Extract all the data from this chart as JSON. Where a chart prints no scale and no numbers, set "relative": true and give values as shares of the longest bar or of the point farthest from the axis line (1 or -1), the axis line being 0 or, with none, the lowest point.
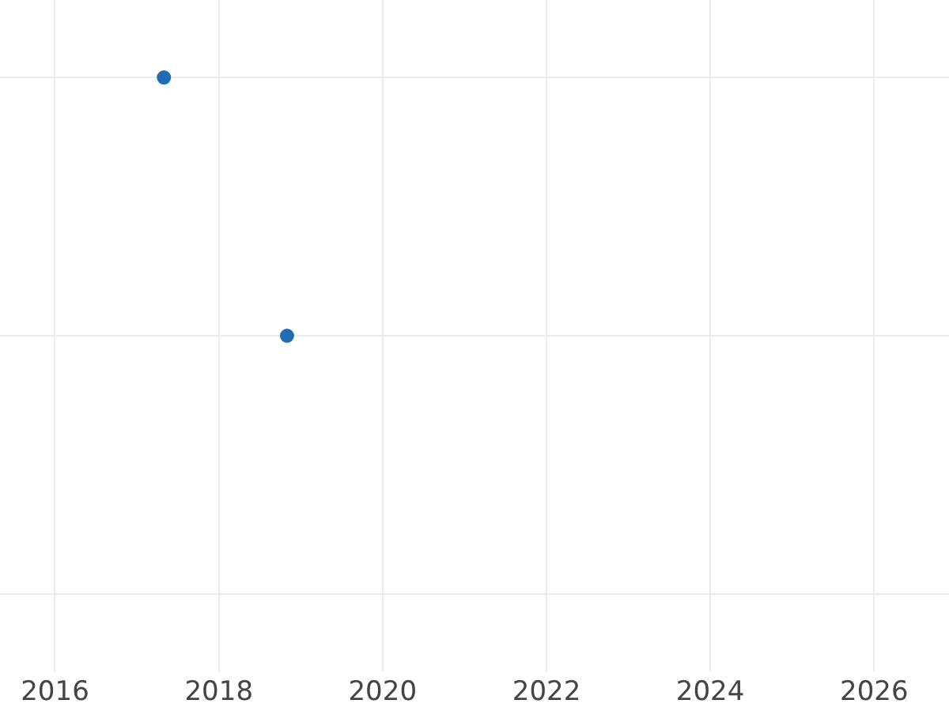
{
  "chart_data": {
    "type": "scatter",
    "x": [
      "2017-05",
      "2018-11"
    ],
    "values": [
      1,
      0
    ],
    "relative": true,
    "color": "#1f6eb4",
    "marker": "circle",
    "xlim": [
      "2015-05",
      "2026-12"
    ],
    "xticks": [
      "2016",
      "2018",
      "2020",
      "2022",
      "2024",
      "2026"
    ],
    "grid": true,
    "tick_labels": "x"
  }
}
